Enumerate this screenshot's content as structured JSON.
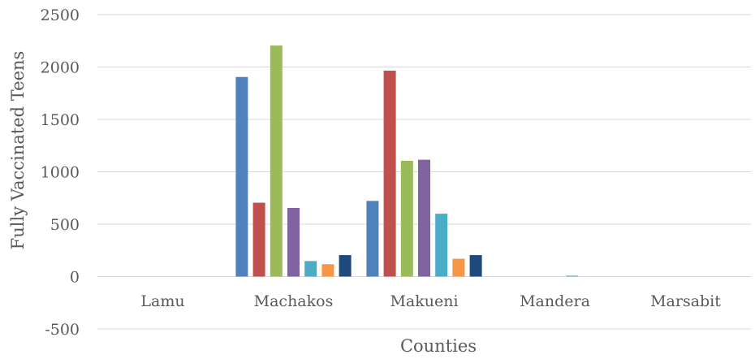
{
  "chart_data": {
    "type": "bar",
    "title": "",
    "xlabel": "Counties",
    "ylabel": "Fully Vaccinated Teens",
    "ylim": [
      -500,
      2500
    ],
    "yticks": [
      -500,
      0,
      500,
      1000,
      1500,
      2000,
      2500
    ],
    "grid": true,
    "legend": "none",
    "categories": [
      "Lamu",
      "Machakos",
      "Makueni",
      "Mandera",
      "Marsabit"
    ],
    "series": [
      {
        "color": "#4f81bd",
        "values": [
          0,
          1905,
          722,
          0,
          0
        ]
      },
      {
        "color": "#c0504d",
        "values": [
          0,
          705,
          1965,
          0,
          0
        ]
      },
      {
        "color": "#9bbb59",
        "values": [
          0,
          2205,
          1105,
          0,
          0
        ]
      },
      {
        "color": "#8064a2",
        "values": [
          0,
          655,
          1115,
          0,
          0
        ]
      },
      {
        "color": "#4bacc6",
        "values": [
          0,
          148,
          600,
          8,
          0
        ]
      },
      {
        "color": "#f79646",
        "values": [
          0,
          118,
          170,
          0,
          0
        ]
      },
      {
        "color": "#1f497d",
        "values": [
          0,
          205,
          205,
          0,
          0
        ]
      }
    ]
  }
}
